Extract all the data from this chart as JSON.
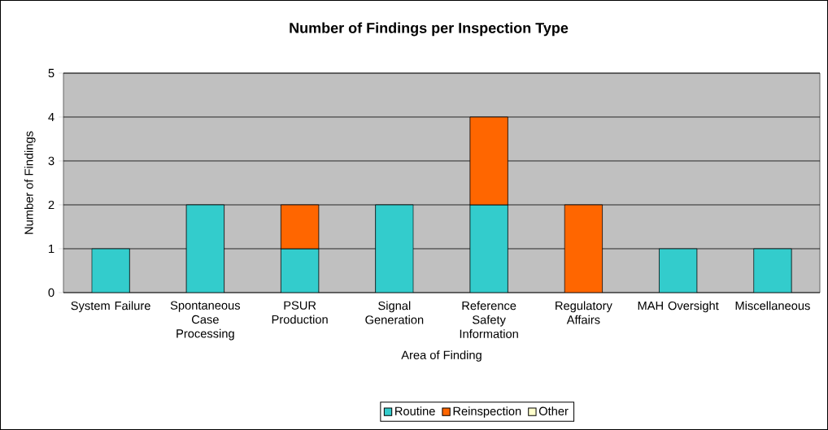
{
  "chart_data": {
    "type": "bar",
    "title": "Number of Findings per Inspection Type",
    "xlabel": "Area of Finding",
    "ylabel": "Number of Findings",
    "categories": [
      "System Failure",
      "Spontaneous Case Processing",
      "PSUR Production",
      "Signal Generation",
      "Reference Safety Information",
      "Regulatory Affairs",
      "MAH Oversight",
      "Miscellaneous"
    ],
    "stacked": true,
    "series": [
      {
        "name": "Routine",
        "color": "#33cccc",
        "values": [
          1,
          2,
          1,
          2,
          2,
          null,
          1,
          1
        ]
      },
      {
        "name": "Reinspection",
        "color": "#ff6600",
        "values": [
          null,
          null,
          1,
          null,
          2,
          2,
          null,
          null
        ]
      },
      {
        "name": "Other",
        "color": "#ffffcc",
        "values": [
          null,
          null,
          null,
          null,
          null,
          null,
          null,
          null
        ]
      }
    ],
    "ylim": [
      0,
      5
    ],
    "yticks": [
      0,
      1,
      2,
      3,
      4,
      5
    ],
    "grid": "y",
    "legend": "bottom"
  }
}
